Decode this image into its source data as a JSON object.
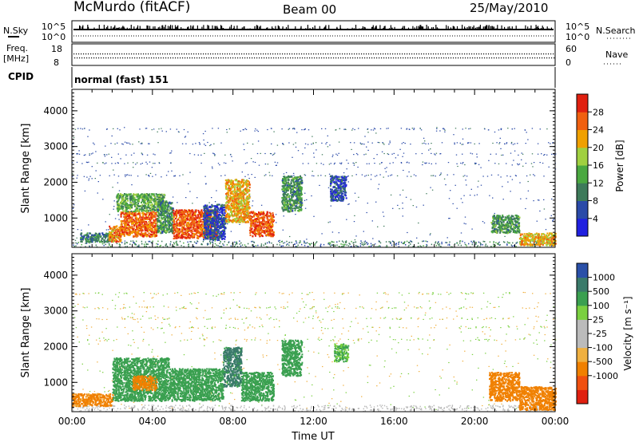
{
  "header": {
    "station": "McMurdo (fitACF)",
    "beam": "Beam 00",
    "date": "25/May/2010"
  },
  "summary_panel": {
    "nsky_label": "N.Sky",
    "nsearch_label": "N.Search",
    "noise_ticks": [
      "10^5",
      "10^0"
    ],
    "freq_label": "Freq.",
    "freq_unit": "[MHz]",
    "freq_ticks": [
      "18",
      "8"
    ],
    "nave_label": "Nave",
    "nave_ticks": [
      "60",
      "0"
    ],
    "cpid_label": "CPID",
    "cpid_value": "normal (fast) 151"
  },
  "colors": {
    "power_scale": [
      "#2020e0",
      "#2a4aa8",
      "#3d7a5a",
      "#4aa840",
      "#a0d040",
      "#f0a000",
      "#f06010",
      "#e02010"
    ],
    "velocity_scale": [
      "#e02010",
      "#f05010",
      "#f08000",
      "#f0b040",
      "#bbbbbb",
      "#bbbbbb",
      "#7ad040",
      "#3aa050",
      "#3a7a6a",
      "#2a50a8"
    ]
  },
  "chart_data": [
    {
      "type": "heatmap",
      "name": "power",
      "ylabel": "Slant Range [km]",
      "xlabel": "",
      "yticks": [
        "1000",
        "2000",
        "3000",
        "4000"
      ],
      "xlim": [
        0,
        24
      ],
      "ylim": [
        180,
        4600
      ],
      "colorbar_label": "Power [dB]",
      "colorbar_ticks": [
        "28",
        "24",
        "20",
        "16",
        "12",
        "8",
        "4"
      ],
      "colorbar_range": [
        0,
        32
      ],
      "regions": [
        {
          "t0": 0.4,
          "t1": 2.0,
          "r0": 350,
          "r1": 600,
          "value": 10
        },
        {
          "t0": 1.8,
          "t1": 2.4,
          "r0": 350,
          "r1": 800,
          "value": 24
        },
        {
          "t0": 2.4,
          "t1": 4.2,
          "r0": 500,
          "r1": 1200,
          "value": 26
        },
        {
          "t0": 2.2,
          "t1": 4.6,
          "r0": 1200,
          "r1": 1700,
          "value": 14
        },
        {
          "t0": 4.2,
          "t1": 5.0,
          "r0": 600,
          "r1": 1500,
          "value": 12
        },
        {
          "t0": 5.0,
          "t1": 7.2,
          "r0": 450,
          "r1": 1250,
          "value": 27
        },
        {
          "t0": 6.5,
          "t1": 7.6,
          "r0": 400,
          "r1": 1400,
          "value": 6
        },
        {
          "t0": 7.6,
          "t1": 8.8,
          "r0": 900,
          "r1": 2100,
          "value": 22
        },
        {
          "t0": 8.8,
          "t1": 10.0,
          "r0": 500,
          "r1": 1200,
          "value": 27
        },
        {
          "t0": 10.4,
          "t1": 11.4,
          "r0": 1200,
          "r1": 2200,
          "value": 12
        },
        {
          "t0": 12.8,
          "t1": 13.6,
          "r0": 1500,
          "r1": 2200,
          "value": 6
        },
        {
          "t0": 20.8,
          "t1": 22.2,
          "r0": 600,
          "r1": 1100,
          "value": 12
        },
        {
          "t0": 22.2,
          "t1": 24.0,
          "r0": 250,
          "r1": 600,
          "value": 22
        }
      ]
    },
    {
      "type": "heatmap",
      "name": "velocity",
      "ylabel": "Slant Range [km]",
      "xlabel": "Time UT",
      "yticks": [
        "1000",
        "2000",
        "3000",
        "4000"
      ],
      "xticks": [
        "00:00",
        "04:00",
        "08:00",
        "12:00",
        "16:00",
        "20:00",
        "00:00"
      ],
      "xlim": [
        0,
        24
      ],
      "ylim": [
        180,
        4600
      ],
      "colorbar_label": "Velocity [m s⁻¹]",
      "colorbar_ticks": [
        "1000",
        "500",
        "100",
        "25",
        "-25",
        "-100",
        "-500",
        "-1000"
      ],
      "regions": [
        {
          "t0": 0.0,
          "t1": 2.0,
          "r0": 350,
          "r1": 700,
          "value": -150
        },
        {
          "t0": 2.0,
          "t1": 4.8,
          "r0": 500,
          "r1": 1700,
          "value": 200
        },
        {
          "t0": 3.0,
          "t1": 4.2,
          "r0": 800,
          "r1": 1200,
          "value": -150
        },
        {
          "t0": 4.8,
          "t1": 7.5,
          "r0": 500,
          "r1": 1400,
          "value": 200
        },
        {
          "t0": 7.5,
          "t1": 8.4,
          "r0": 900,
          "r1": 2000,
          "value": 700
        },
        {
          "t0": 8.4,
          "t1": 10.0,
          "r0": 500,
          "r1": 1300,
          "value": 300
        },
        {
          "t0": 10.4,
          "t1": 11.4,
          "r0": 1200,
          "r1": 2200,
          "value": 200
        },
        {
          "t0": 13.0,
          "t1": 13.7,
          "r0": 1600,
          "r1": 2100,
          "value": 100
        },
        {
          "t0": 20.7,
          "t1": 22.2,
          "r0": 500,
          "r1": 1300,
          "value": -300
        },
        {
          "t0": 22.2,
          "t1": 24.0,
          "r0": 250,
          "r1": 900,
          "value": -200
        }
      ]
    }
  ]
}
